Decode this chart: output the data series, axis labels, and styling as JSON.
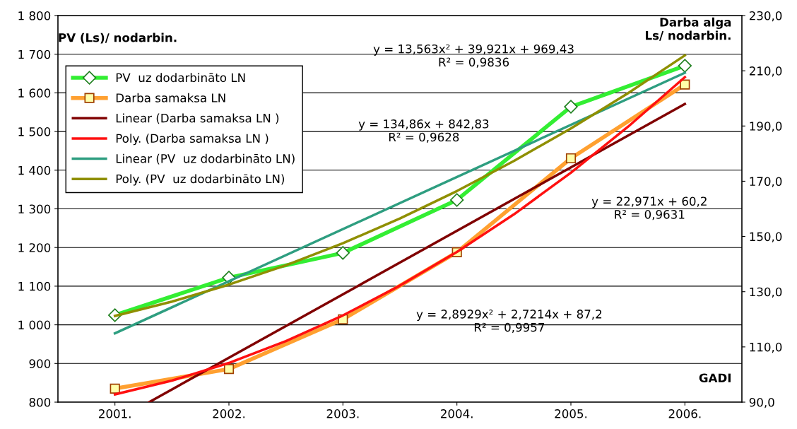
{
  "chart_data": {
    "type": "line",
    "xlabel": "GADI",
    "ylabel": "PV (Ls)/ nodarbin.",
    "y2label": "Darba alga\nLs/ nodarbin.",
    "x": [
      2001,
      2002,
      2003,
      2004,
      2005,
      2006
    ],
    "xlim": [
      2000.5,
      2006.5
    ],
    "xticks": [
      {
        "value": 2001,
        "label": "2001."
      },
      {
        "value": 2002,
        "label": "2002."
      },
      {
        "value": 2003,
        "label": "2003."
      },
      {
        "value": 2004,
        "label": "2004."
      },
      {
        "value": 2005,
        "label": "2005."
      },
      {
        "value": 2006,
        "label": "2006."
      }
    ],
    "ylim": [
      800,
      1800
    ],
    "yticks": [
      {
        "value": 800,
        "label": "800"
      },
      {
        "value": 900,
        "label": "900"
      },
      {
        "value": 1000,
        "label": "1 000"
      },
      {
        "value": 1100,
        "label": "1 100"
      },
      {
        "value": 1200,
        "label": "1 200"
      },
      {
        "value": 1300,
        "label": "1 300"
      },
      {
        "value": 1400,
        "label": "1 400"
      },
      {
        "value": 1500,
        "label": "1 500"
      },
      {
        "value": 1600,
        "label": "1 600"
      },
      {
        "value": 1700,
        "label": "1 700"
      },
      {
        "value": 1800,
        "label": "1 800"
      }
    ],
    "y2lim": [
      90,
      230
    ],
    "y2ticks": [
      {
        "value": 90,
        "label": "90,0"
      },
      {
        "value": 110,
        "label": "110,0"
      },
      {
        "value": 130,
        "label": "130,0"
      },
      {
        "value": 150,
        "label": "150,0"
      },
      {
        "value": 170,
        "label": "170,0"
      },
      {
        "value": 190,
        "label": "190,0"
      },
      {
        "value": 210,
        "label": "210,0"
      },
      {
        "value": 230,
        "label": "230,0"
      }
    ],
    "grid": "y",
    "legend": "top left",
    "series": [
      {
        "name": "PV  uz dodarbināto LN",
        "color": "#33ee33",
        "marker": "diamond",
        "values": [
          1025,
          1122,
          1186,
          1323,
          1564,
          1670
        ]
      },
      {
        "name": "Darba samaksa LN",
        "color": "#ffa030",
        "marker": "square",
        "axis": "y2",
        "values": [
          94.9,
          102.0,
          120.0,
          144.3,
          178.3,
          205.0
        ]
      },
      {
        "name": "Linear (Darba samaksa LN )",
        "color": "#800000",
        "axis": "y2",
        "x": [
          2001.3,
          2006
        ],
        "values": [
          90.0,
          198.0
        ]
      },
      {
        "name": "Poly. (Darba samaksa LN )",
        "color": "#ff1010",
        "axis": "y2",
        "x": [
          2001,
          2001.5,
          2002,
          2002.5,
          2003,
          2003.5,
          2004,
          2004.5,
          2005,
          2005.5,
          2006
        ],
        "values": [
          92.8,
          97.8,
          104.2,
          112.1,
          121.4,
          132.2,
          144.4,
          158.0,
          173.1,
          189.7,
          207.7
        ]
      },
      {
        "name": "Linear (PV  uz dodarbināto LN)",
        "color": "#2e9e80",
        "x": [
          2001,
          2006
        ],
        "values": [
          978,
          1652
        ]
      },
      {
        "name": "Poly. (PV  uz dodarbināto LN)",
        "color": "#8f8f00",
        "x": [
          2001,
          2001.5,
          2002,
          2002.5,
          2003,
          2003.5,
          2004,
          2004.5,
          2005,
          2005.5,
          2006
        ],
        "values": [
          1023,
          1060,
          1104,
          1154,
          1211,
          1275,
          1346,
          1424,
          1508,
          1599,
          1697
        ]
      }
    ],
    "annotations": [
      "y = 13,563x² + 39,921x + 969,43\nR² = 0,9836",
      "y = 134,86x + 842,83\nR² = 0,9628",
      "y = 22,971x + 60,2\nR² = 0,9631",
      "y = 2,8929x² + 2,7214x + 87,2\nR² = 0,9957"
    ]
  }
}
